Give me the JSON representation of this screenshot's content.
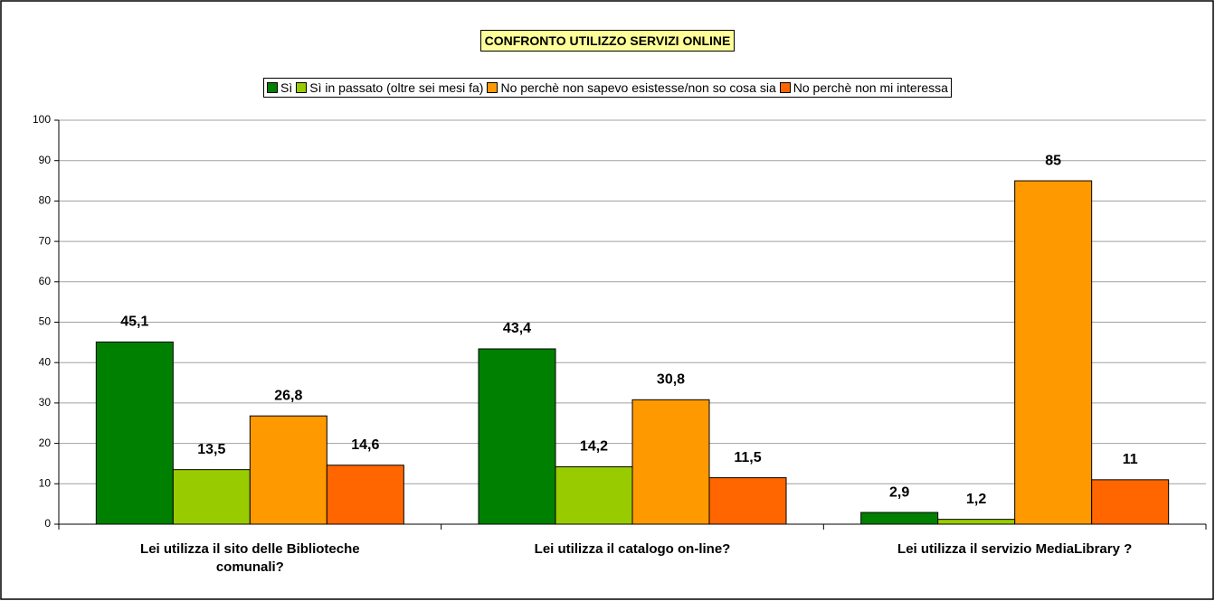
{
  "chart_data": {
    "type": "bar",
    "title": "CONFRONTO UTILIZZO SERVIZI ONLINE",
    "categories": [
      "Lei utilizza il sito delle Biblioteche comunali?",
      "Lei utilizza il catalogo on-line?",
      "Lei utilizza il servizio MediaLibrary ?"
    ],
    "series": [
      {
        "name": "Sì",
        "color": "#008000",
        "values": [
          45.1,
          43.4,
          2.9
        ],
        "value_labels": [
          "45,1",
          "43,4",
          "2,9"
        ]
      },
      {
        "name": "Sì in passato (oltre sei mesi fa)",
        "color": "#99cc00",
        "values": [
          13.5,
          14.2,
          1.2
        ],
        "value_labels": [
          "13,5",
          "14,2",
          "1,2"
        ]
      },
      {
        "name": "No perchè non sapevo esistesse/non so cosa sia",
        "color": "#ff9900",
        "values": [
          26.8,
          30.8,
          85
        ],
        "value_labels": [
          "26,8",
          "30,8",
          "85"
        ]
      },
      {
        "name": "No perchè non mi interessa",
        "color": "#ff6600",
        "values": [
          14.6,
          11.5,
          11
        ],
        "value_labels": [
          "14,6",
          "11,5",
          "11"
        ]
      }
    ],
    "ylim": [
      0,
      100
    ],
    "yticks": [
      0,
      10,
      20,
      30,
      40,
      50,
      60,
      70,
      80,
      90,
      100
    ],
    "grid": true,
    "legend": "top"
  }
}
